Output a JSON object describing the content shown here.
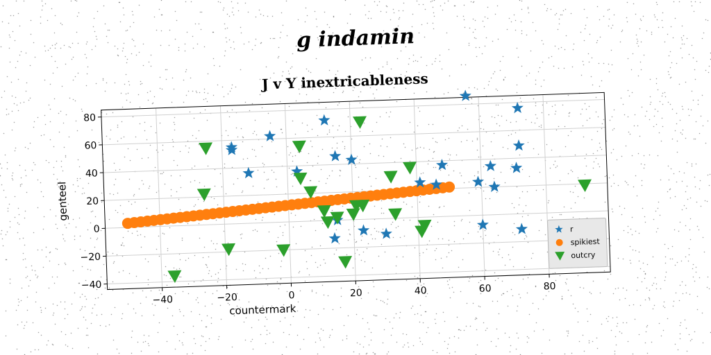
{
  "suptitle": "g indamin",
  "chart_data": {
    "type": "scatter",
    "title": "J v Y inextricableness",
    "xlabel": "countermark",
    "ylabel": "genteel",
    "xlim": [
      -57,
      99
    ],
    "ylim": [
      -44,
      85
    ],
    "xticks": [
      -40,
      -20,
      0,
      20,
      40,
      60,
      80
    ],
    "yticks": [
      -40,
      -20,
      0,
      20,
      40,
      60,
      80
    ],
    "xtick_labels": [
      "−40",
      "−20",
      "0",
      "20",
      "40",
      "60",
      "80"
    ],
    "ytick_labels": [
      "−40",
      "−20",
      "0",
      "20",
      "40",
      "60",
      "80"
    ],
    "grid": true,
    "legend_position": "lower-right",
    "series": [
      {
        "name": "r",
        "marker": "star",
        "color": "#1f77b4",
        "points": [
          [
            -17,
            55
          ],
          [
            -17,
            53
          ],
          [
            -12,
            36
          ],
          [
            -5,
            62
          ],
          [
            3,
            36
          ],
          [
            12,
            72
          ],
          [
            15,
            46
          ],
          [
            20,
            43
          ],
          [
            23,
            -8
          ],
          [
            30,
            -11
          ],
          [
            14,
            -13
          ],
          [
            15,
            0
          ],
          [
            41,
            25
          ],
          [
            46,
            23
          ],
          [
            48,
            37
          ],
          [
            56,
            86
          ],
          [
            59,
            24
          ],
          [
            60,
            -7
          ],
          [
            63,
            35
          ],
          [
            64,
            20
          ],
          [
            71,
            33
          ],
          [
            72,
            76
          ],
          [
            72,
            49
          ],
          [
            72,
            -11
          ]
        ]
      },
      {
        "name": "spikiest",
        "marker": "circle",
        "color": "#ff7f0e",
        "line": {
          "x_start": -50,
          "x_end": 50,
          "y_start": 3,
          "y_end": 21,
          "count": 50
        }
      },
      {
        "name": "outcry",
        "marker": "triangle-down",
        "color": "#2ca02c",
        "points": [
          [
            -36,
            -36
          ],
          [
            -26,
            22
          ],
          [
            -25,
            55
          ],
          [
            -19,
            -18
          ],
          [
            -2,
            -20
          ],
          [
            4,
            54
          ],
          [
            4,
            31
          ],
          [
            7,
            21
          ],
          [
            11,
            7
          ],
          [
            12,
            -1
          ],
          [
            15,
            2
          ],
          [
            17,
            -30
          ],
          [
            20,
            4
          ],
          [
            21,
            10
          ],
          [
            23,
            10
          ],
          [
            23,
            70
          ],
          [
            32,
            30
          ],
          [
            33,
            3
          ],
          [
            38,
            36
          ],
          [
            41,
            -10
          ],
          [
            42,
            -6
          ],
          [
            92,
            19
          ]
        ]
      }
    ]
  },
  "colors": {
    "r": "#1f77b4",
    "spikiest": "#ff7f0e",
    "outcry": "#2ca02c",
    "grid": "#d0d0d0"
  }
}
